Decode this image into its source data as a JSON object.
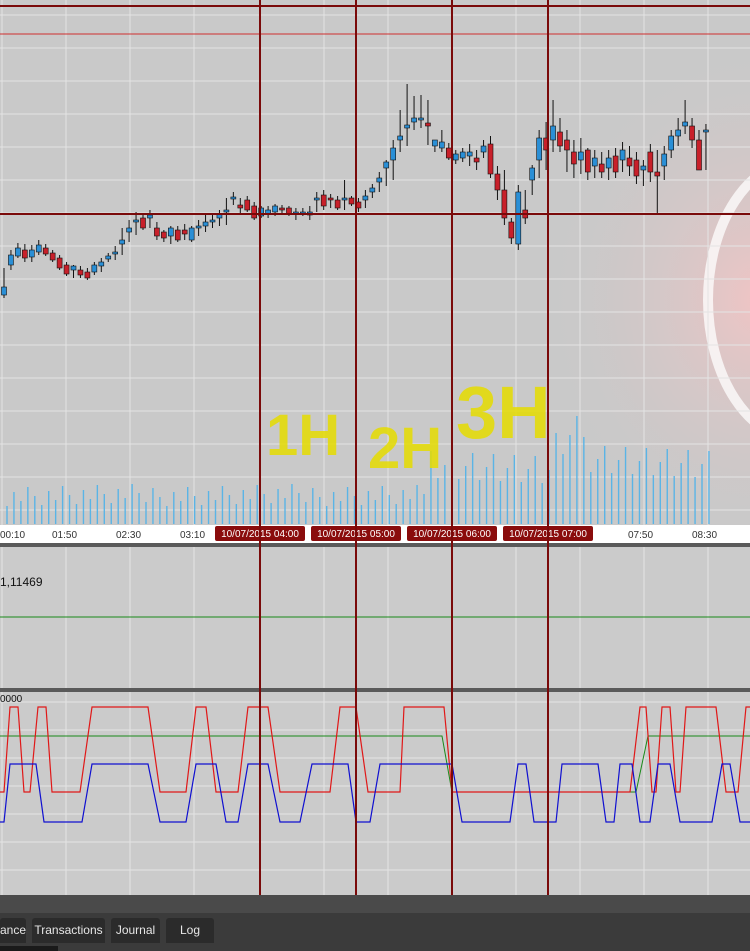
{
  "chart": {
    "time_labels": [
      "00:10",
      "01:50",
      "02:30",
      "03:10",
      "07:50",
      "08:30"
    ],
    "cursor_labels": [
      "10/07/2015 04:00",
      "10/07/2015 05:00",
      "10/07/2015 06:00",
      "10/07/2015 07:00"
    ],
    "annotations": [
      "1H",
      "2H",
      "3H"
    ],
    "indicator1_value": "1,11469",
    "indicator2_value": "0000",
    "colors": {
      "bull": "#2a8fd6",
      "bear": "#c8202a",
      "volume": "#5ab4e6",
      "cursor_line": "#7a0a0a",
      "annotation": "#e6dc00",
      "osc_red": "#e01818",
      "osc_blue": "#1010d0",
      "osc_green": "#1a8a1a"
    }
  },
  "tabs": [
    {
      "label": "ance"
    },
    {
      "label": "Transactions"
    },
    {
      "label": "Journal"
    },
    {
      "label": "Log"
    }
  ]
}
